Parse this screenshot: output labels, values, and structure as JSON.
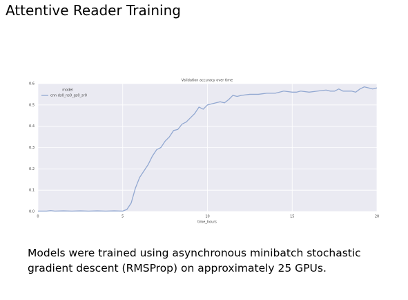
{
  "slide": {
    "title": "Attentive Reader Training",
    "caption": [
      "Models were trained using asynchronous minibatch stochastic",
      "gradient descent (RMSProp) on approximately 25 GPUs."
    ]
  },
  "chart_data": {
    "type": "line",
    "title": "Validation accuracy over time",
    "x_label": "time_hours",
    "legend_title": "model",
    "legend_position": "upper left",
    "grid": true,
    "background": "#eaeaf2",
    "xlim": [
      0,
      20
    ],
    "xticks": [
      0,
      5,
      10,
      15,
      20
    ],
    "ylim": [
      0,
      0.6
    ],
    "yticks": [
      {
        "value": 0,
        "label": "0.0"
      },
      0.1,
      0.2,
      0.3,
      0.4,
      0.5,
      0.6
    ],
    "x": [
      0,
      0.5,
      0.75,
      1,
      1.5,
      2,
      2.5,
      3,
      3.5,
      4,
      4.5,
      5,
      5.25,
      5.5,
      5.75,
      6,
      6.25,
      6.5,
      6.75,
      7,
      7.25,
      7.5,
      7.75,
      8,
      8.25,
      8.5,
      8.75,
      9,
      9.25,
      9.5,
      9.75,
      10,
      10.25,
      10.5,
      10.75,
      11,
      11.25,
      11.5,
      11.75,
      12,
      12.5,
      13,
      13.5,
      14,
      14.5,
      15,
      15.25,
      15.5,
      16,
      16.5,
      17,
      17.25,
      17.5,
      17.75,
      18,
      18.5,
      18.75,
      19,
      19.25,
      19.5,
      19.75,
      20
    ],
    "series": [
      {
        "name": "cnn ds0_ns0_gs0_sr0",
        "color": "#92a8d1",
        "values": [
          0.002,
          0.002,
          0.004,
          0.002,
          0.003,
          0.002,
          0.003,
          0.002,
          0.003,
          0.002,
          0.003,
          0.002,
          0.01,
          0.04,
          0.11,
          0.16,
          0.19,
          0.22,
          0.26,
          0.29,
          0.3,
          0.33,
          0.35,
          0.38,
          0.385,
          0.41,
          0.42,
          0.44,
          0.46,
          0.49,
          0.48,
          0.5,
          0.505,
          0.51,
          0.515,
          0.51,
          0.525,
          0.545,
          0.54,
          0.545,
          0.55,
          0.55,
          0.555,
          0.555,
          0.565,
          0.56,
          0.56,
          0.565,
          0.56,
          0.565,
          0.57,
          0.565,
          0.565,
          0.575,
          0.565,
          0.565,
          0.56,
          0.575,
          0.585,
          0.58,
          0.575,
          0.58
        ]
      }
    ]
  }
}
